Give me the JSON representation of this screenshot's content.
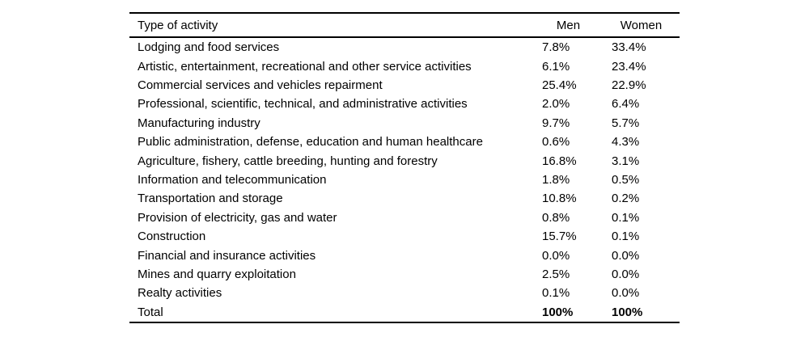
{
  "table": {
    "columns": [
      "Type of activity",
      "Men",
      "Women"
    ],
    "rows": [
      {
        "activity": "Lodging and food services",
        "men": "7.8%",
        "women": "33.4%"
      },
      {
        "activity": "Artistic, entertainment, recreational and other service activities",
        "men": "6.1%",
        "women": "23.4%"
      },
      {
        "activity": "Commercial services and vehicles repairment",
        "men": "25.4%",
        "women": "22.9%"
      },
      {
        "activity": "Professional, scientific, technical, and administrative activities",
        "men": "2.0%",
        "women": "6.4%"
      },
      {
        "activity": "Manufacturing industry",
        "men": "9.7%",
        "women": "5.7%"
      },
      {
        "activity": "Public administration, defense, education and human healthcare",
        "men": "0.6%",
        "women": "4.3%"
      },
      {
        "activity": "Agriculture, fishery, cattle breeding, hunting and forestry",
        "men": "16.8%",
        "women": "3.1%"
      },
      {
        "activity": "Information and telecommunication",
        "men": "1.8%",
        "women": "0.5%"
      },
      {
        "activity": "Transportation and storage",
        "men": "10.8%",
        "women": "0.2%"
      },
      {
        "activity": "Provision of electricity, gas and water",
        "men": "0.8%",
        "women": "0.1%"
      },
      {
        "activity": "Construction",
        "men": "15.7%",
        "women": "0.1%"
      },
      {
        "activity": "Financial and insurance activities",
        "men": "0.0%",
        "women": "0.0%"
      },
      {
        "activity": "Mines and quarry exploitation",
        "men": "2.5%",
        "women": "0.0%"
      },
      {
        "activity": "Realty activities",
        "men": "0.1%",
        "women": "0.0%"
      }
    ],
    "total": {
      "label": "Total",
      "men": "100%",
      "women": "100%"
    },
    "colors": {
      "text": "#000000",
      "rule": "#000000",
      "background": "#ffffff"
    }
  }
}
